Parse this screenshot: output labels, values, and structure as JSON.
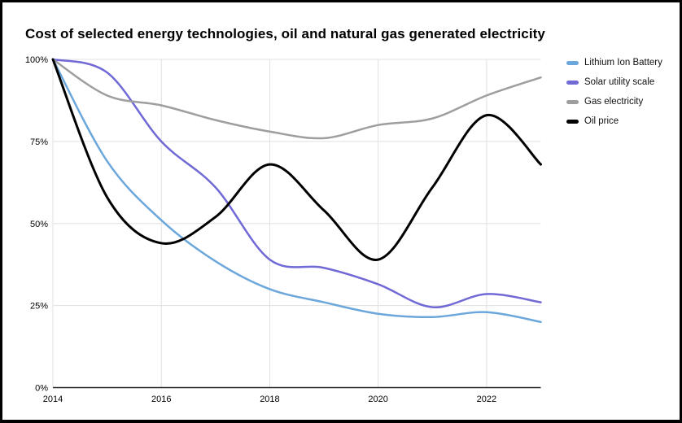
{
  "title": "Cost of selected energy technologies, oil and natural gas generated electricity",
  "chart_data": {
    "type": "line",
    "title": "Cost of selected energy technologies, oil and natural gas generated electricity",
    "xlabel": "",
    "ylabel": "",
    "x": [
      2014,
      2015,
      2016,
      2017,
      2018,
      2019,
      2020,
      2021,
      2022,
      2023
    ],
    "xlim": [
      2014,
      2023
    ],
    "ylim": [
      0,
      100
    ],
    "x_ticks": [
      2014,
      2016,
      2018,
      2020,
      2022
    ],
    "x_tick_labels": [
      "2014",
      "2016",
      "2018",
      "2020",
      "2022"
    ],
    "y_ticks": [
      0,
      25,
      50,
      75,
      100
    ],
    "y_tick_labels": [
      "0%",
      "25%",
      "50%",
      "75%",
      "100%"
    ],
    "grid": true,
    "legend_position": "right",
    "series": [
      {
        "name": "Lithium Ion Battery",
        "color": "#6CA7DB",
        "values": [
          100,
          69,
          51,
          38.5,
          30,
          26,
          22.5,
          21.5,
          23,
          20
        ]
      },
      {
        "name": "Solar utility scale",
        "color": "#7069D6",
        "values": [
          100,
          96,
          75,
          61,
          39,
          36.5,
          31.5,
          24.5,
          28.5,
          26
        ]
      },
      {
        "name": "Gas electricity",
        "color": "#9E9E9E",
        "values": [
          100,
          89,
          86,
          81.5,
          78,
          76,
          80,
          82,
          89,
          94.5
        ]
      },
      {
        "name": "Oil price",
        "color": "#000000",
        "values": [
          100,
          58,
          44,
          52,
          68,
          54,
          39,
          61,
          83,
          68
        ]
      }
    ],
    "colors": {
      "gridline": "#e0e0e0",
      "axis": "#212121",
      "tick_text": "#000000"
    }
  }
}
